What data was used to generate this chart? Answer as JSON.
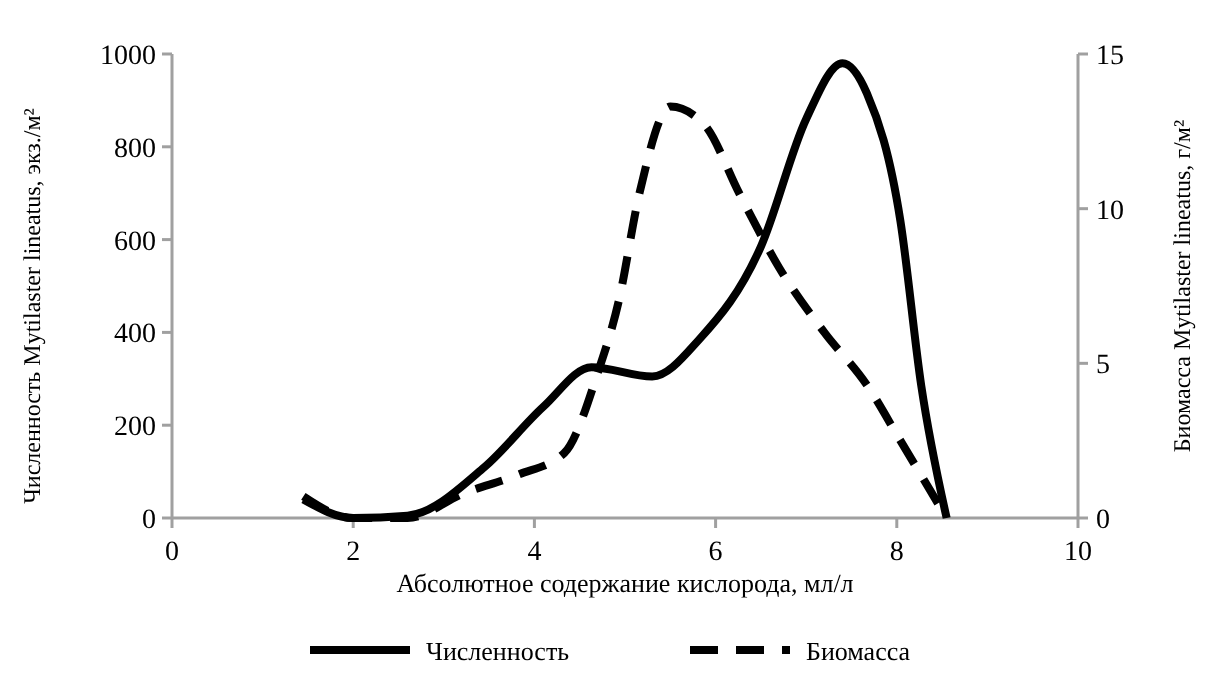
{
  "chart_data": {
    "type": "line",
    "xlabel": "Абсолютное содержание кислорода, мл/л",
    "ylabel": "Численность Mytilaster lineatus, экз./м²",
    "y2label": "Биомасса Mytilaster lineatus, г/м²",
    "xlim": [
      0,
      10
    ],
    "xticks": [
      0,
      2,
      4,
      6,
      8,
      10
    ],
    "ylim": [
      0,
      1000
    ],
    "yticks": [
      0,
      200,
      400,
      600,
      800,
      1000
    ],
    "y2lim": [
      0,
      15
    ],
    "y2ticks": [
      0,
      5,
      10,
      15
    ],
    "legend": "bottom",
    "grid": false,
    "series": [
      {
        "name": "Численность",
        "color": "#000000",
        "line_style": "solid",
        "x": [
          1.45,
          2.0,
          2.6,
          3.45,
          4.1,
          4.63,
          5.3,
          5.82,
          6.5,
          7.0,
          7.4,
          7.67,
          8.04,
          8.27,
          8.55
        ],
        "values": [
          40,
          0,
          5,
          110,
          240,
          325,
          305,
          385,
          585,
          860,
          980,
          915,
          640,
          285,
          0
        ]
      },
      {
        "name": "Биомасса",
        "color": "#000000",
        "line_style": "dashed",
        "axis": "y2",
        "x": [
          1.45,
          2.0,
          2.6,
          3.22,
          3.82,
          4.33,
          4.7,
          4.93,
          5.16,
          5.5,
          5.88,
          6.26,
          6.7,
          7.2,
          7.67,
          8.04,
          8.55
        ],
        "values": [
          0.7,
          0,
          0,
          0.8,
          1.4,
          2.1,
          4.7,
          7.0,
          10.5,
          13.3,
          12.7,
          10.5,
          8.1,
          6.0,
          4.3,
          2.5,
          0
        ]
      }
    ]
  }
}
